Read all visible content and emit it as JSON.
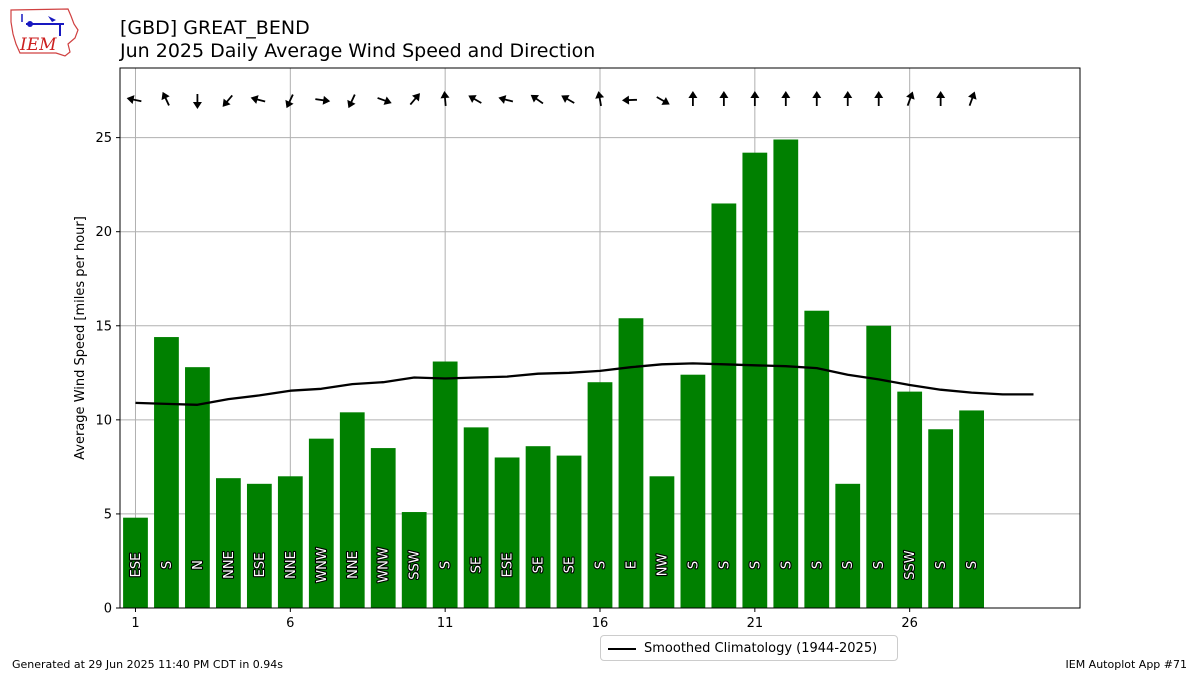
{
  "header": {
    "title": "[GBD] GREAT_BEND",
    "subtitle": "Jun 2025 Daily Average Wind Speed and Direction",
    "logo_text": "IEM"
  },
  "footer": {
    "generated": "Generated at 29 Jun 2025 11:40 PM CDT in 0.94s",
    "app": "IEM Autoplot App #71"
  },
  "legend": {
    "label": "Smoothed Climatology (1944-2025)",
    "placement": "lower-center"
  },
  "colors": {
    "bar": "#008000",
    "line": "#000000",
    "grid": "#b0b0b0",
    "arrow": "#000000",
    "label": "#ffffff"
  },
  "chart_data": {
    "type": "bar",
    "ylabel": "Average Wind Speed [miles per hour]",
    "xlim": [
      0.5,
      31.5
    ],
    "ylim": [
      0,
      28.7
    ],
    "grid": true,
    "xticks": [
      1,
      6,
      11,
      16,
      21,
      26
    ],
    "yticks": [
      0,
      5,
      10,
      15,
      20,
      25
    ],
    "days": [
      1,
      2,
      3,
      4,
      5,
      6,
      7,
      8,
      9,
      10,
      11,
      12,
      13,
      14,
      15,
      16,
      17,
      18,
      19,
      20,
      21,
      22,
      23,
      24,
      25,
      26,
      27,
      28
    ],
    "values": [
      4.8,
      14.4,
      12.8,
      6.9,
      6.6,
      7.0,
      9.0,
      10.4,
      8.5,
      5.1,
      13.1,
      9.6,
      8.0,
      8.6,
      8.1,
      12.0,
      15.4,
      7.0,
      12.4,
      21.5,
      24.2,
      24.9,
      15.8,
      6.6,
      15.0,
      11.5,
      9.5,
      10.5
    ],
    "directions": [
      "ESE",
      "S",
      "N",
      "NNE",
      "ESE",
      "NNE",
      "WNW",
      "NNE",
      "WNW",
      "SSW",
      "S",
      "SE",
      "ESE",
      "SE",
      "SE",
      "S",
      "E",
      "NW",
      "S",
      "S",
      "S",
      "S",
      "S",
      "S",
      "S",
      "SSW",
      "S",
      "S"
    ],
    "arrow_angles_deg": [
      -168,
      -115,
      90,
      130,
      -165,
      115,
      8,
      115,
      20,
      -50,
      -95,
      -150,
      -165,
      -145,
      -150,
      -100,
      178,
      30,
      -90,
      -90,
      -90,
      -90,
      -90,
      -90,
      -90,
      -70,
      -90,
      -70
    ],
    "climatology": {
      "name": "Smoothed Climatology (1944-2025)",
      "days": [
        1,
        2,
        3,
        4,
        5,
        6,
        7,
        8,
        9,
        10,
        11,
        12,
        13,
        14,
        15,
        16,
        17,
        18,
        19,
        20,
        21,
        22,
        23,
        24,
        25,
        26,
        27,
        28,
        29,
        30
      ],
      "values": [
        10.9,
        10.85,
        10.8,
        11.1,
        11.3,
        11.55,
        11.65,
        11.9,
        12.0,
        12.25,
        12.2,
        12.25,
        12.3,
        12.45,
        12.5,
        12.6,
        12.8,
        12.95,
        13.0,
        12.95,
        12.9,
        12.85,
        12.75,
        12.4,
        12.15,
        11.85,
        11.6,
        11.45,
        11.35,
        11.35
      ]
    }
  }
}
